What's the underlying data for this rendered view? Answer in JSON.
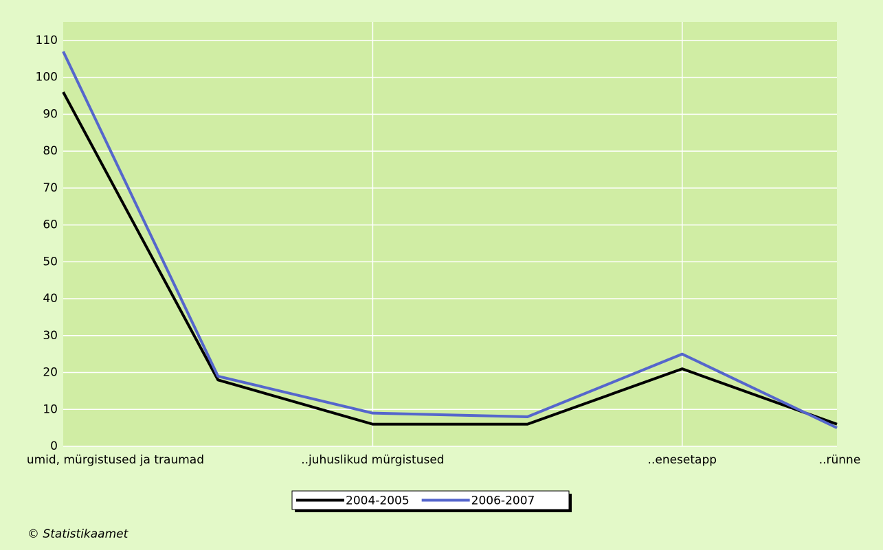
{
  "chart_data": {
    "type": "line",
    "categories": [
      "umid, mürgistused ja traumad",
      null,
      "..juhuslikud mürgistused",
      null,
      "..enesetapp",
      "..rünne"
    ],
    "series": [
      {
        "name": "2004-2005",
        "color": "#000000",
        "values": [
          96,
          18,
          6,
          6,
          21,
          6
        ]
      },
      {
        "name": "2006-2007",
        "color": "#5566cc",
        "values": [
          107,
          19,
          9,
          8,
          25,
          5
        ]
      }
    ],
    "ylim": [
      0,
      115
    ],
    "yticks": [
      0,
      10,
      20,
      30,
      40,
      50,
      60,
      70,
      80,
      90,
      100,
      110
    ],
    "grid": true,
    "legend": "bottom",
    "footer": "© Statistikaamet"
  }
}
